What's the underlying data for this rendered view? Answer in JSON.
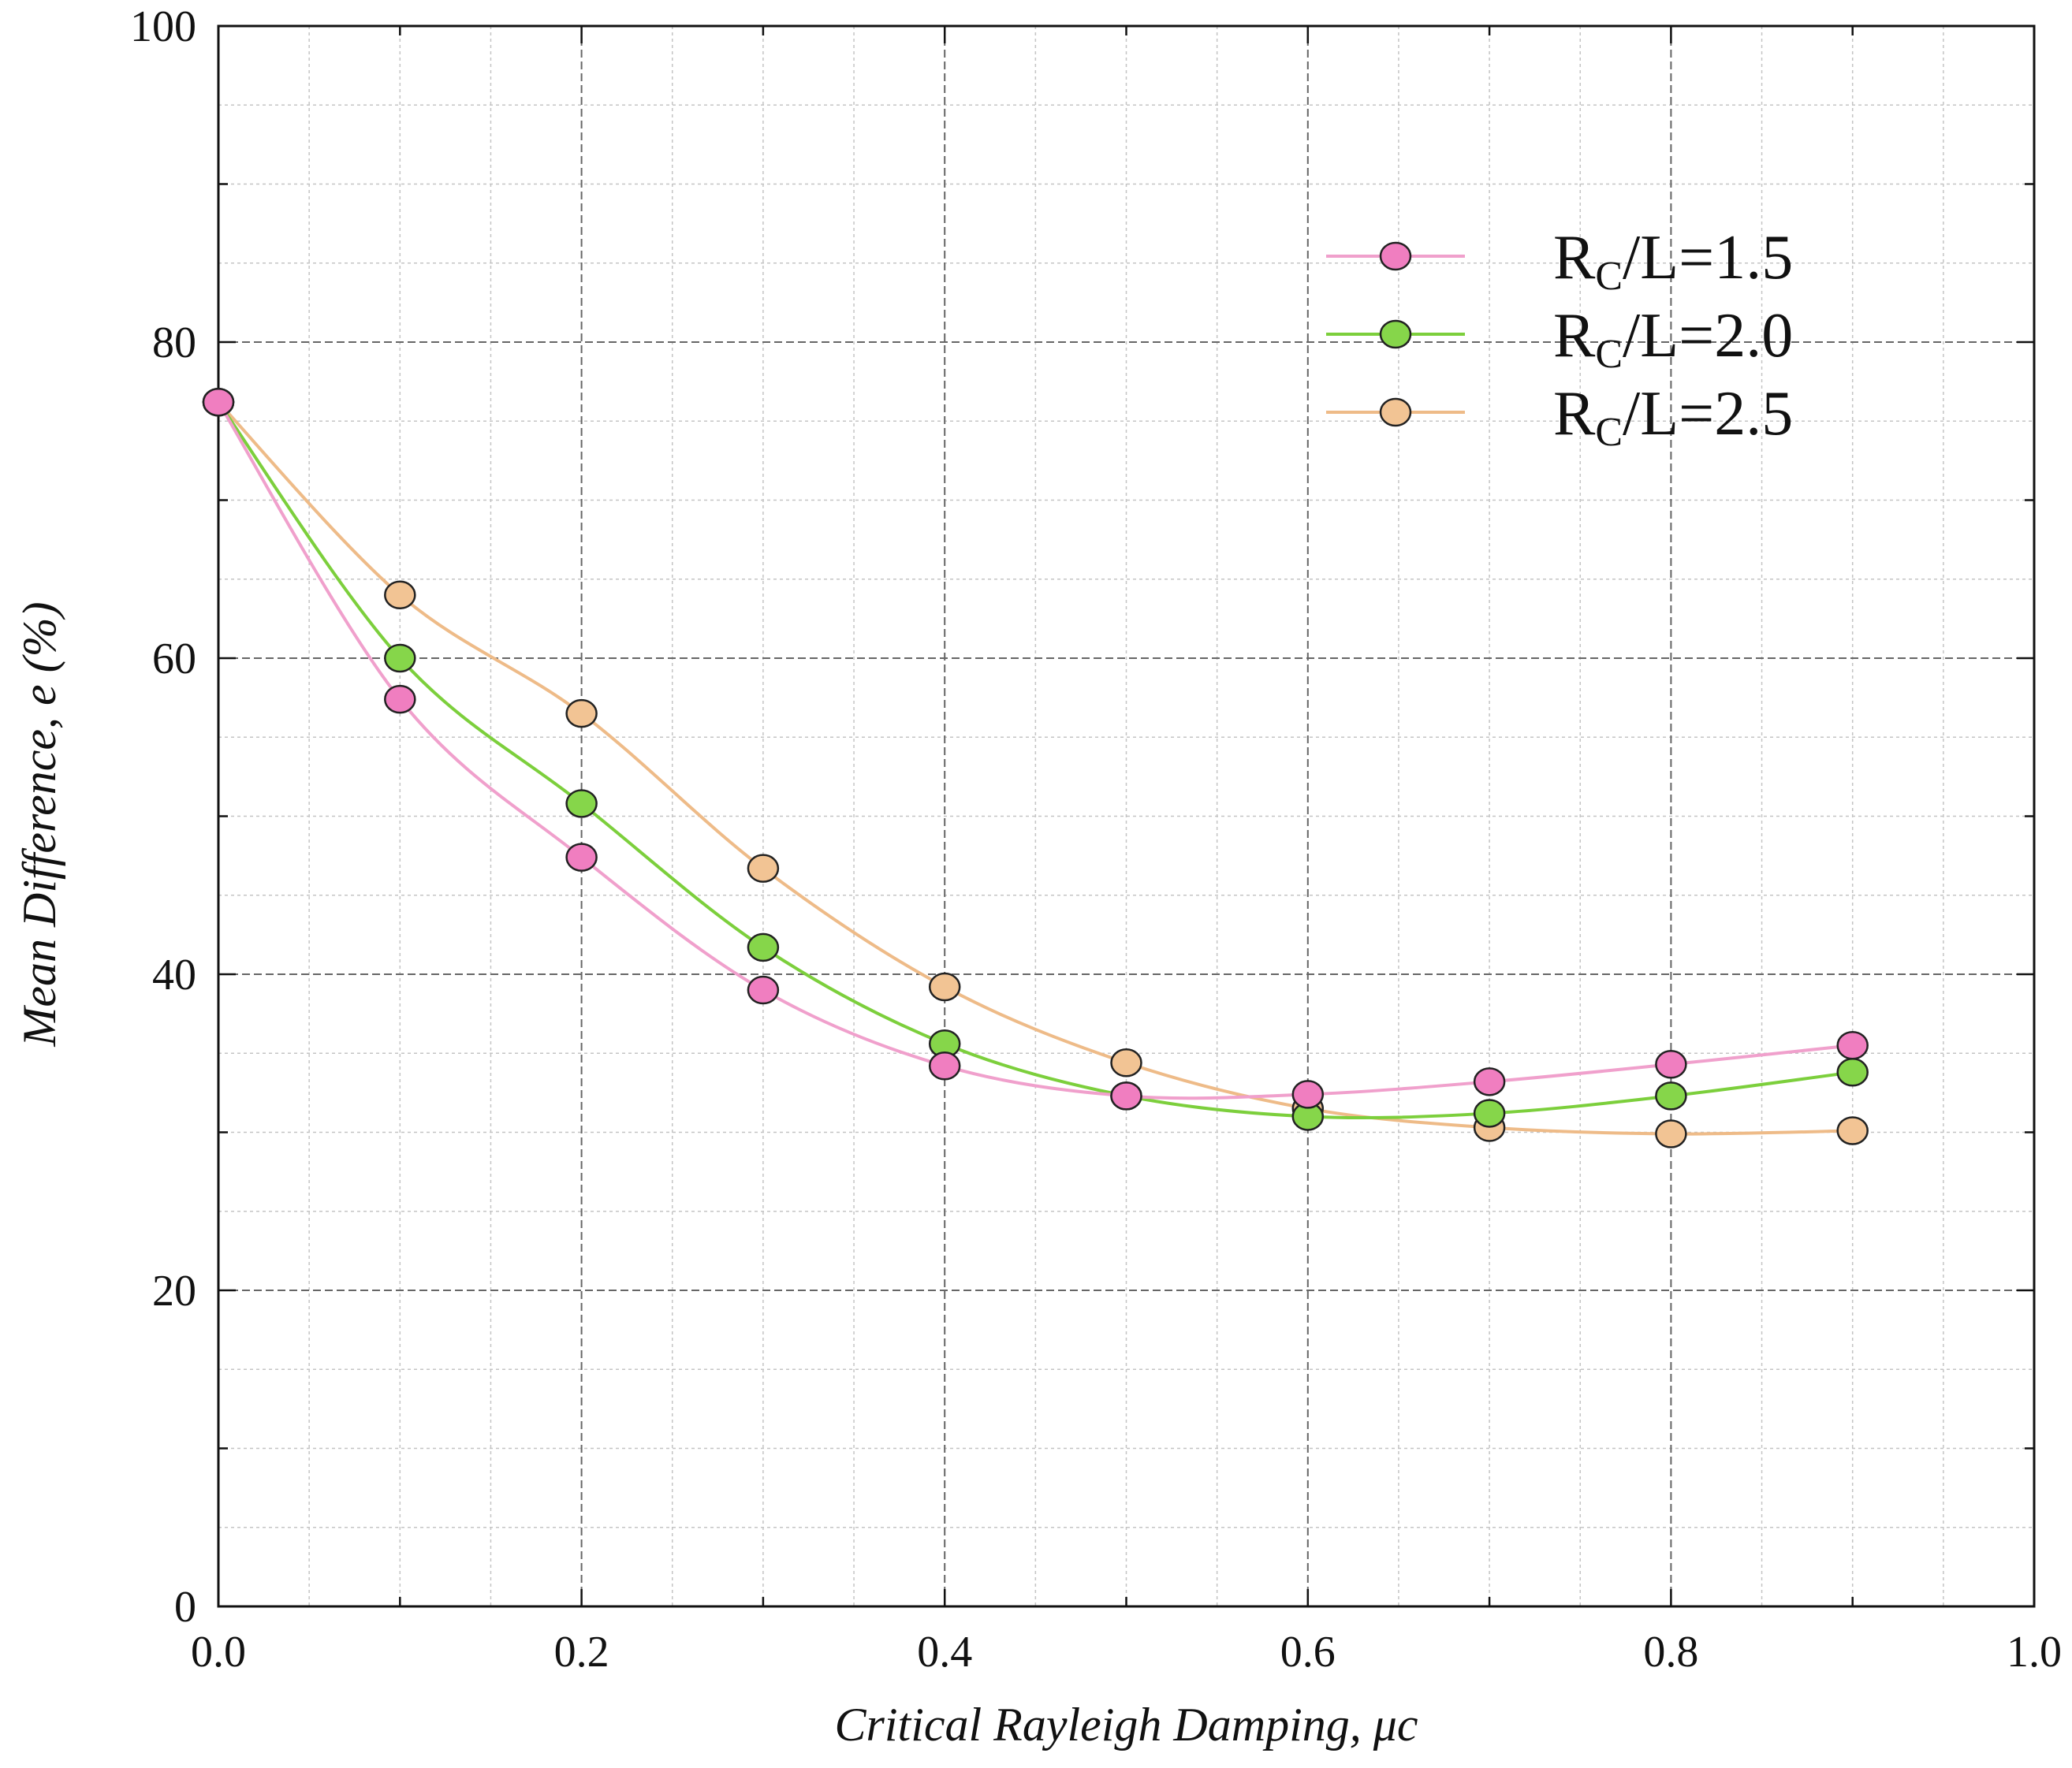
{
  "chart_data": {
    "type": "line",
    "title": "",
    "xlabel": "Critical Rayleigh Damping, μc",
    "ylabel": "Mean Difference, e (%)",
    "xlim": [
      0.0,
      1.0
    ],
    "ylim": [
      0,
      100
    ],
    "x_ticks": [
      "0.0",
      "0.2",
      "0.4",
      "0.6",
      "0.8",
      "1.0"
    ],
    "y_ticks": [
      "0",
      "20",
      "40",
      "60",
      "80",
      "100"
    ],
    "grid": true,
    "legend_position": "top-right",
    "x": [
      0.0,
      0.1,
      0.2,
      0.3,
      0.4,
      0.5,
      0.6,
      0.7,
      0.8,
      0.9
    ],
    "series": [
      {
        "name": "RC/L=1.5",
        "label_main": "R",
        "label_sub": "C",
        "label_rest": "/L=1.5",
        "color": "#f0a0cc",
        "marker_color": "#f07ec0",
        "values": [
          76.2,
          57.4,
          47.4,
          39.0,
          34.2,
          32.3,
          32.4,
          33.2,
          34.3,
          35.5
        ]
      },
      {
        "name": "RC/L=2.0",
        "label_main": "R",
        "label_sub": "C",
        "label_rest": "/L=2.0",
        "color": "#7ccf3c",
        "marker_color": "#86d64a",
        "values": [
          76.2,
          60.0,
          50.8,
          41.7,
          35.6,
          32.3,
          31.0,
          31.2,
          32.3,
          33.8
        ]
      },
      {
        "name": "RC/L=2.5",
        "label_main": "R",
        "label_sub": "C",
        "label_rest": "/L=2.5",
        "color": "#eebb88",
        "marker_color": "#f2c494",
        "values": [
          76.2,
          64.0,
          56.5,
          46.7,
          39.2,
          34.4,
          31.5,
          30.3,
          29.9,
          30.1
        ]
      }
    ]
  }
}
